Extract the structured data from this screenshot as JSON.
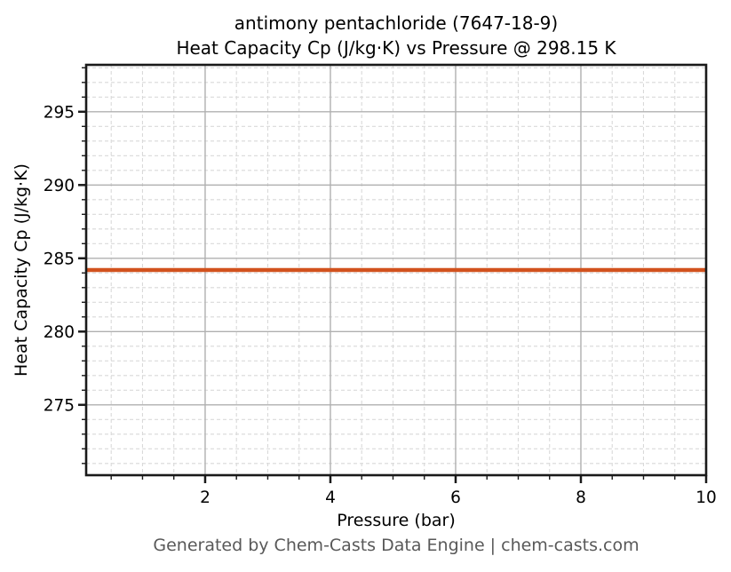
{
  "figure": {
    "footer": "Generated by Chem-Casts Data Engine | chem-casts.com",
    "background_color": "#ffffff"
  },
  "chart_data": {
    "type": "line",
    "title": "antimony pentachloride (7647-18-9)\nHeat Capacity Cp (J/kg·K) vs Pressure @ 298.15 K",
    "title_line1": "antimony pentachloride (7647-18-9)",
    "title_line2": "Heat Capacity Cp (J/kg·K) vs Pressure @ 298.15 K",
    "xlabel": "Pressure (bar)",
    "ylabel": "Heat Capacity Cp (J/kg·K)",
    "xlim": [
      0.1,
      10
    ],
    "ylim": [
      270.2,
      298.2
    ],
    "xticks": [
      2,
      4,
      6,
      8,
      10
    ],
    "yticks": [
      275,
      280,
      285,
      290,
      295
    ],
    "x_minor_step": 0.5,
    "y_minor_step": 1,
    "grid": true,
    "grid_major_style": "solid",
    "grid_minor_style": "dashed",
    "legend": "none",
    "series": [
      {
        "name": "Heat Capacity Cp",
        "color": "#d2521e",
        "line_width": 4.5,
        "x": [
          0.1,
          1,
          2,
          3,
          4,
          5,
          6,
          7,
          8,
          9,
          10
        ],
        "y": [
          284.2,
          284.2,
          284.2,
          284.2,
          284.2,
          284.2,
          284.2,
          284.2,
          284.2,
          284.2,
          284.2
        ]
      }
    ],
    "colors": {
      "line": "#d2521e",
      "grid_major": "#b0b0b0",
      "grid_minor": "#d9d9d9",
      "axis": "#1a1a1a",
      "tick_label": "#000000",
      "footer_text": "#595959",
      "background": "#ffffff"
    }
  }
}
